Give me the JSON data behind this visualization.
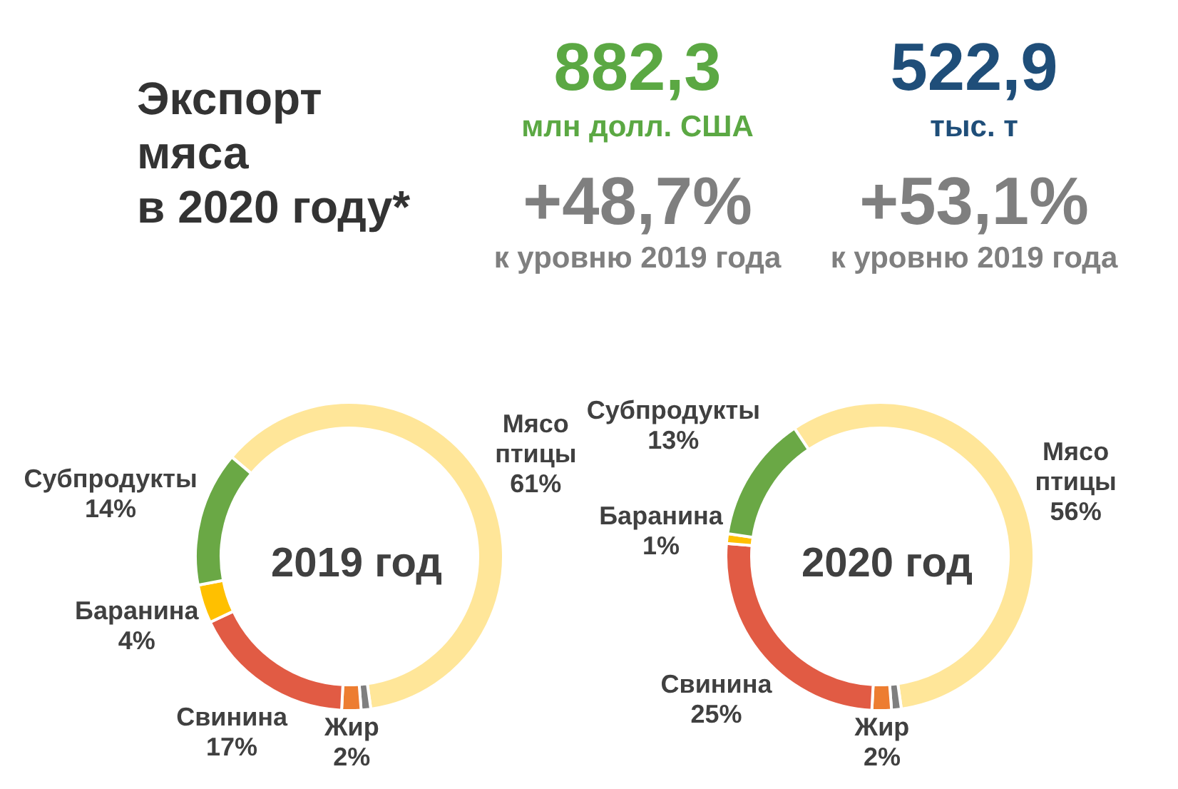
{
  "chart_data": [
    {
      "type": "other",
      "title": "Экспорт\nмяса\nв 2020 году*",
      "annotations": [
        "882,3",
        "млн долл. США",
        "+48,7%",
        "к уровню 2019 года",
        "522,9",
        "тыс. т",
        "+53,1%",
        "к уровню 2019 года"
      ]
    },
    {
      "type": "donut",
      "title": "2019 год",
      "categories": [
        "Мясо птицы",
        null,
        "Жир",
        "Свинина",
        "Баранина",
        "Субпродукты"
      ],
      "values": [
        61,
        1,
        2,
        17,
        4,
        14
      ],
      "value_labels": [
        "61%",
        null,
        "2%",
        "17%",
        "4%",
        "14%"
      ],
      "colors": [
        "#ffe699",
        "#7f7f7f",
        "#ed7d31",
        "#e15b44",
        "#ffc000",
        "#6aa845"
      ]
    },
    {
      "type": "donut",
      "title": "2020 год",
      "categories": [
        "Мясо птицы",
        null,
        "Жир",
        "Свинина",
        "Баранина",
        "Субпродукты"
      ],
      "values": [
        56,
        1,
        2,
        25,
        1,
        13
      ],
      "value_labels": [
        "56%",
        null,
        "2%",
        "25%",
        "1%",
        "13%"
      ],
      "colors": [
        "#ffe699",
        "#7f7f7f",
        "#ed7d31",
        "#e15b44",
        "#ffc000",
        "#6aa845"
      ]
    }
  ]
}
